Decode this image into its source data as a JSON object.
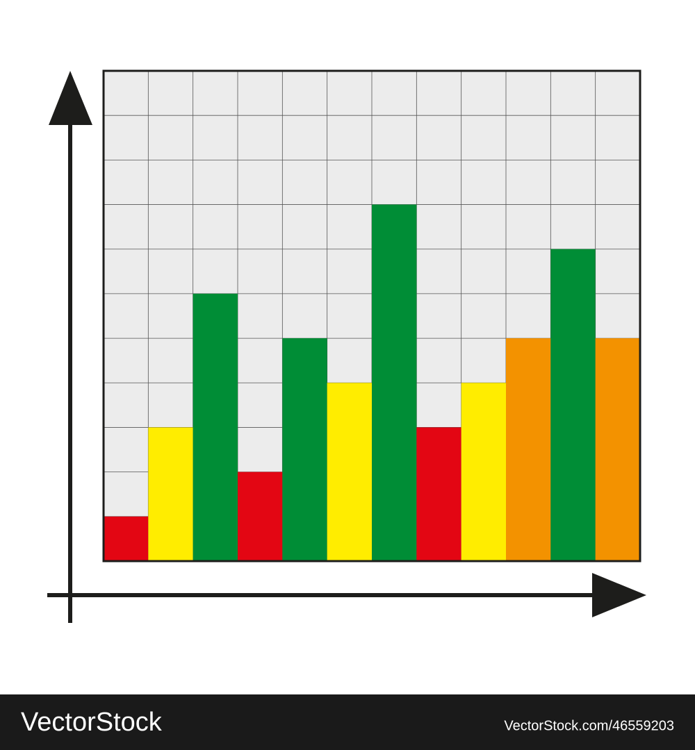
{
  "chart_data": {
    "type": "bar",
    "categories": [
      null,
      null,
      null,
      null,
      null,
      null,
      null,
      null,
      null,
      null,
      null,
      null
    ],
    "values": [
      1,
      3,
      6,
      2,
      5,
      4,
      8,
      3,
      4,
      5,
      7,
      5
    ],
    "colors": [
      "#e30613",
      "#ffed00",
      "#008d36",
      "#e30613",
      "#008d36",
      "#ffed00",
      "#008d36",
      "#e30613",
      "#ffed00",
      "#f39200",
      "#008d36",
      "#f39200"
    ],
    "ylim": [
      0,
      11
    ],
    "yticks": [
      0,
      1,
      2,
      3,
      4,
      5,
      6,
      7,
      8,
      9,
      10,
      11
    ],
    "grid": true
  },
  "watermark": {
    "brand": "VectorStock",
    "id": "VectorStock.com/46559203"
  }
}
